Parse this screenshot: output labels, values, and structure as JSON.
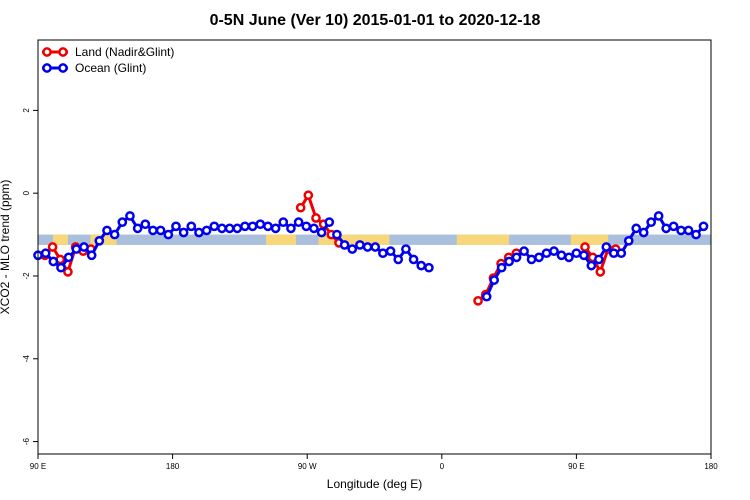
{
  "chart_data": {
    "type": "line",
    "title": "0-5N June (Ver 10)   2015-01-01 to 2020-12-18",
    "xlabel": "Longitude (deg E)",
    "ylabel": "XCO2 - MLO trend (ppm)",
    "xlim": [
      -180,
      180
    ],
    "ylim": [
      -6.3,
      3.7
    ],
    "xticks": [
      {
        "value": -180,
        "label": "90 E"
      },
      {
        "value": -108,
        "label": "180"
      },
      {
        "value": -36,
        "label": "90 W"
      },
      {
        "value": 36,
        "label": "0"
      },
      {
        "value": 108,
        "label": "90 E"
      },
      {
        "value": 180,
        "label": "180"
      }
    ],
    "yticks": [
      {
        "value": 2,
        "label": "2"
      },
      {
        "value": 0,
        "label": "0"
      },
      {
        "value": -2,
        "label": "-2"
      },
      {
        "value": -4,
        "label": "-4"
      },
      {
        "value": -6,
        "label": "-6"
      }
    ],
    "band": {
      "y_low": -1.25,
      "y_high": -1.0
    },
    "land_segments": [
      [
        -172,
        -164
      ],
      [
        -152,
        -138
      ],
      [
        -58,
        -42
      ],
      [
        -30,
        8
      ],
      [
        44,
        72
      ],
      [
        105,
        125
      ]
    ],
    "legend": {
      "position": "top-left",
      "entries": [
        {
          "label": "Land (Nadir&Glint)",
          "color": "#ee0000"
        },
        {
          "label": "Ocean (Glint)",
          "color": "#0000ee"
        }
      ]
    },
    "series": [
      {
        "name": "Land (Nadir&Glint)",
        "color": "#ee0000",
        "segments": [
          [
            [
              -176.3,
              -1.5
            ],
            [
              -172.2,
              -1.3
            ],
            [
              -168.1,
              -1.6
            ],
            [
              -164.0,
              -1.9
            ],
            [
              -159.9,
              -1.3
            ],
            [
              -155.8,
              -1.4
            ],
            [
              -151.7,
              -1.35
            ]
          ],
          [
            [
              -39.5,
              -0.35
            ],
            [
              -35.4,
              -0.05
            ],
            [
              -31.3,
              -0.6
            ],
            [
              -27.2,
              -0.75
            ],
            [
              -23.1,
              -1.0
            ],
            [
              -19.0,
              -1.2
            ]
          ],
          [
            [
              55.4,
              -2.6
            ],
            [
              59.5,
              -2.45
            ],
            [
              63.6,
              -2.05
            ],
            [
              67.7,
              -1.7
            ],
            [
              71.8,
              -1.55
            ],
            [
              75.9,
              -1.45
            ]
          ],
          [
            [
              112.6,
              -1.3
            ],
            [
              116.7,
              -1.55
            ],
            [
              120.8,
              -1.9
            ],
            [
              124.9,
              -1.35
            ],
            [
              129.0,
              -1.35
            ]
          ]
        ]
      },
      {
        "name": "Ocean (Glint)",
        "color": "#0000ee",
        "segments": [
          [
            [
              -180,
              -1.5
            ],
            [
              -175.9,
              -1.45
            ],
            [
              -171.8,
              -1.65
            ],
            [
              -167.7,
              -1.8
            ],
            [
              -163.6,
              -1.55
            ],
            [
              -159.5,
              -1.35
            ],
            [
              -155.4,
              -1.3
            ],
            [
              -151.3,
              -1.5
            ],
            [
              -147.2,
              -1.15
            ],
            [
              -143.1,
              -0.9
            ],
            [
              -139.0,
              -1.0
            ],
            [
              -134.9,
              -0.7
            ],
            [
              -130.8,
              -0.55
            ],
            [
              -126.7,
              -0.85
            ],
            [
              -122.6,
              -0.75
            ],
            [
              -118.5,
              -0.9
            ],
            [
              -114.4,
              -0.9
            ],
            [
              -110.3,
              -1.0
            ],
            [
              -106.2,
              -0.8
            ],
            [
              -102.1,
              -0.95
            ],
            [
              -98.0,
              -0.8
            ],
            [
              -93.9,
              -0.95
            ],
            [
              -89.8,
              -0.9
            ],
            [
              -85.7,
              -0.8
            ],
            [
              -81.6,
              -0.85
            ],
            [
              -77.5,
              -0.85
            ],
            [
              -73.4,
              -0.85
            ],
            [
              -69.3,
              -0.8
            ],
            [
              -65.2,
              -0.8
            ],
            [
              -61.1,
              -0.75
            ],
            [
              -57.0,
              -0.8
            ],
            [
              -52.9,
              -0.85
            ],
            [
              -48.8,
              -0.7
            ],
            [
              -44.7,
              -0.85
            ],
            [
              -40.6,
              -0.7
            ],
            [
              -36.5,
              -0.8
            ],
            [
              -32.4,
              -0.85
            ],
            [
              -28.3,
              -0.95
            ],
            [
              -24.2,
              -0.7
            ]
          ],
          [
            [
              -20.1,
              -1.0
            ],
            [
              -16.0,
              -1.25
            ],
            [
              -11.9,
              -1.35
            ],
            [
              -7.8,
              -1.25
            ],
            [
              -3.7,
              -1.3
            ],
            [
              0.4,
              -1.3
            ],
            [
              4.5,
              -1.45
            ],
            [
              8.6,
              -1.4
            ],
            [
              12.7,
              -1.6
            ],
            [
              16.8,
              -1.35
            ],
            [
              20.9,
              -1.6
            ],
            [
              25.0,
              -1.75
            ],
            [
              29.1,
              -1.8
            ]
          ],
          [
            [
              60.0,
              -2.5
            ],
            [
              64.0,
              -2.1
            ],
            [
              68.0,
              -1.8
            ],
            [
              72.0,
              -1.65
            ],
            [
              76.0,
              -1.55
            ],
            [
              80.0,
              -1.4
            ],
            [
              84.0,
              -1.6
            ],
            [
              88.0,
              -1.55
            ],
            [
              92.0,
              -1.45
            ],
            [
              96.0,
              -1.4
            ],
            [
              100.0,
              -1.5
            ],
            [
              104.0,
              -1.55
            ],
            [
              108.0,
              -1.45
            ],
            [
              112.0,
              -1.5
            ],
            [
              116.0,
              -1.75
            ],
            [
              120.0,
              -1.6
            ],
            [
              124.0,
              -1.3
            ],
            [
              128.0,
              -1.45
            ],
            [
              132.0,
              -1.45
            ],
            [
              136.0,
              -1.15
            ],
            [
              140.0,
              -0.85
            ],
            [
              144.0,
              -0.95
            ],
            [
              148.0,
              -0.7
            ],
            [
              152.0,
              -0.55
            ],
            [
              156.0,
              -0.85
            ],
            [
              160.0,
              -0.8
            ],
            [
              164.0,
              -0.9
            ],
            [
              168.0,
              -0.9
            ],
            [
              172.0,
              -1.0
            ],
            [
              176.0,
              -0.8
            ]
          ]
        ]
      }
    ]
  }
}
